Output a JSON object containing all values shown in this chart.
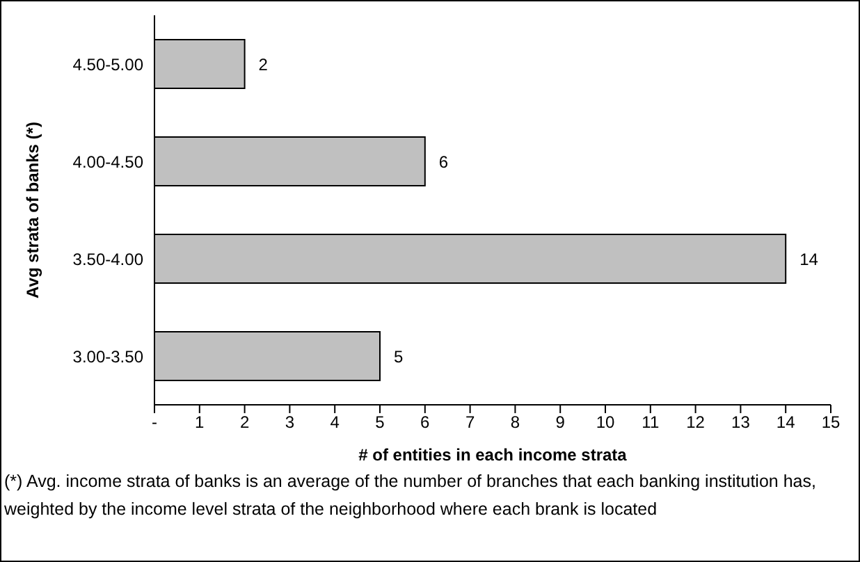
{
  "chart_data": {
    "type": "bar",
    "orientation": "horizontal",
    "categories": [
      "4.50-5.00",
      "4.00-4.50",
      "3.50-4.00",
      "3.00-3.50"
    ],
    "values": [
      2,
      6,
      14,
      5
    ],
    "color": "#c0c0c0",
    "xlim": [
      0,
      15
    ],
    "xticks": [
      {
        "value": 0,
        "label": "-"
      },
      1,
      2,
      3,
      4,
      5,
      6,
      7,
      8,
      9,
      10,
      11,
      12,
      13,
      14,
      15
    ],
    "xlabel": "# of entities in each income strata",
    "ylabel": "Avg strata of banks (*)",
    "data_labels": true,
    "grid": false,
    "legend": false,
    "annotations": [
      "(*) Avg. income strata of banks is an average of the number of branches that each banking institution has, weighted by the income level strata of the neighborhood where each brank is located"
    ]
  }
}
